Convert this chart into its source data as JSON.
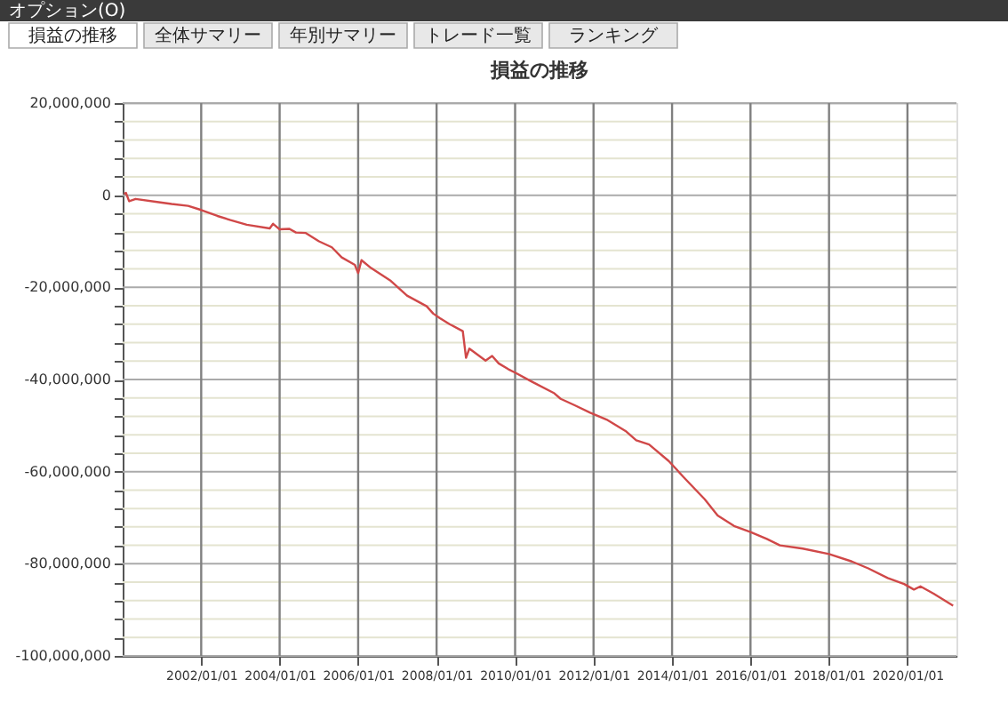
{
  "chart_data": {
    "type": "line",
    "title": "損益の推移",
    "annotations": [
      "オプション(O)",
      "損益の推移",
      "全体サマリー",
      "年別サマリー",
      "トレード一覧",
      "ランキング"
    ],
    "x": [
      "2000-01-15",
      "2000-02",
      "2000-03",
      "2000-05",
      "2000-12",
      "2001-04",
      "2001-09",
      "2002-01",
      "2002-06",
      "2002-10",
      "2003-03",
      "2003-10",
      "2003-11",
      "2004-01",
      "2004-04",
      "2004-06",
      "2004-09",
      "2005-01",
      "2005-05",
      "2005-08",
      "2005-12",
      "2006-01",
      "2006-02",
      "2006-05",
      "2006-11",
      "2007-04",
      "2007-10",
      "2007-12",
      "2008-02",
      "2008-05",
      "2008-09",
      "2008-10",
      "2008-11",
      "2009-04",
      "2009-06",
      "2009-08",
      "2009-11",
      "2010-01",
      "2010-06",
      "2011-01",
      "2011-03",
      "2011-07",
      "2011-12",
      "2012-05",
      "2012-11",
      "2013-02",
      "2013-06",
      "2013-12",
      "2014-05",
      "2014-11",
      "2015-03",
      "2015-08",
      "2016-01",
      "2016-06",
      "2016-10",
      "2017-05",
      "2018-01",
      "2018-08",
      "2019-01",
      "2019-07",
      "2019-12",
      "2020-03",
      "2020-05",
      "2020-09",
      "2021-03"
    ],
    "series": [
      {
        "color": "#d04848",
        "values": [
          300000,
          500000,
          -1300000,
          -800000,
          -1500000,
          -1900000,
          -2300000,
          -3200000,
          -4500000,
          -5400000,
          -6400000,
          -7200000,
          -6200000,
          -7400000,
          -7300000,
          -8100000,
          -8200000,
          -10000000,
          -11300000,
          -13500000,
          -15100000,
          -16900000,
          -14100000,
          -15800000,
          -18600000,
          -21800000,
          -24100000,
          -25700000,
          -26700000,
          -28000000,
          -29500000,
          -35300000,
          -33300000,
          -35900000,
          -34900000,
          -36500000,
          -37800000,
          -38500000,
          -40400000,
          -43000000,
          -44200000,
          -45500000,
          -47200000,
          -48700000,
          -51300000,
          -53200000,
          -54100000,
          -57700000,
          -61500000,
          -66000000,
          -69500000,
          -71800000,
          -73100000,
          -74600000,
          -76000000,
          -76700000,
          -77900000,
          -79500000,
          -81000000,
          -83100000,
          -84400000,
          -85600000,
          -84900000,
          -86500000,
          -89100000
        ]
      }
    ],
    "xlim": [
      "2000-01-01",
      "2021-04-01"
    ],
    "xticks": [
      {
        "value": "2002-01-01",
        "label": "2002/01/01"
      },
      {
        "value": "2004-01-01",
        "label": "2004/01/01"
      },
      {
        "value": "2006-01-01",
        "label": "2006/01/01"
      },
      {
        "value": "2008-01-01",
        "label": "2008/01/01"
      },
      {
        "value": "2010-01-01",
        "label": "2010/01/01"
      },
      {
        "value": "2012-01-01",
        "label": "2012/01/01"
      },
      {
        "value": "2014-01-01",
        "label": "2014/01/01"
      },
      {
        "value": "2016-01-01",
        "label": "2016/01/01"
      },
      {
        "value": "2018-01-01",
        "label": "2018/01/01"
      },
      {
        "value": "2020-01-01",
        "label": "2020/01/01"
      }
    ],
    "ylim": [
      -100000000,
      20000000
    ],
    "yticks": [
      {
        "value": 20000000,
        "label": "20,000,000"
      },
      {
        "value": 16000000,
        "label": null
      },
      {
        "value": 12000000,
        "label": null
      },
      {
        "value": 8000000,
        "label": null
      },
      {
        "value": 4000000,
        "label": null
      },
      {
        "value": 0,
        "label": "0"
      },
      {
        "value": -4000000,
        "label": null
      },
      {
        "value": -8000000,
        "label": null
      },
      {
        "value": -12000000,
        "label": null
      },
      {
        "value": -16000000,
        "label": null
      },
      {
        "value": -20000000,
        "label": "-20,000,000"
      },
      {
        "value": -24000000,
        "label": null
      },
      {
        "value": -28000000,
        "label": null
      },
      {
        "value": -32000000,
        "label": null
      },
      {
        "value": -36000000,
        "label": null
      },
      {
        "value": -40000000,
        "label": "-40,000,000"
      },
      {
        "value": -44000000,
        "label": null
      },
      {
        "value": -48000000,
        "label": null
      },
      {
        "value": -52000000,
        "label": null
      },
      {
        "value": -56000000,
        "label": null
      },
      {
        "value": -60000000,
        "label": "-60,000,000"
      },
      {
        "value": -64000000,
        "label": null
      },
      {
        "value": -68000000,
        "label": null
      },
      {
        "value": -72000000,
        "label": null
      },
      {
        "value": -76000000,
        "label": null
      },
      {
        "value": -80000000,
        "label": "-80,000,000"
      },
      {
        "value": -84000000,
        "label": null
      },
      {
        "value": -88000000,
        "label": null
      },
      {
        "value": -92000000,
        "label": null
      },
      {
        "value": -96000000,
        "label": null
      },
      {
        "value": -100000000,
        "label": "-100,000,000"
      }
    ],
    "grid": true,
    "legend": false,
    "marker": "none",
    "line_style": "solid"
  }
}
